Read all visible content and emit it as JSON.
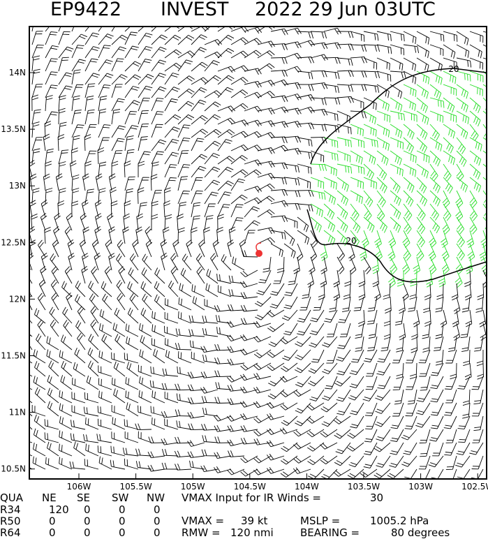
{
  "header": {
    "storm": "EP9422",
    "kind": "INVEST",
    "time": "2022 29 Jun 03UTC"
  },
  "map": {
    "lat_labels": [
      "14N",
      "13.5N",
      "13N",
      "12.5N",
      "12N",
      "11.5N",
      "11N",
      "10.5N"
    ],
    "lon_labels": [
      "106W",
      "105.5W",
      "105W",
      "104.5W",
      "104W",
      "103.5W",
      "103W",
      "102.5W"
    ],
    "contour_labels": [
      "20",
      "20"
    ]
  },
  "footer": {
    "table": {
      "header": [
        "QUA",
        "NE",
        "SE",
        "SW",
        "NW"
      ],
      "rows": [
        [
          "R34",
          "120",
          "0",
          "0",
          "0"
        ],
        [
          "R50",
          "0",
          "0",
          "0",
          "0"
        ],
        [
          "R64",
          "0",
          "0",
          "0",
          "0"
        ]
      ]
    },
    "line1": "VMAX Input for IR Winds =",
    "line1_value": "30",
    "line2": "VMAX =",
    "line2_value": "39 kt",
    "line2b": "MSLP =",
    "line2b_value": "1005.2 hPa",
    "line3": "RMW =",
    "line3_value": "120 nmi",
    "line3b": "BEARING =",
    "line3b_value": "80 degrees"
  }
}
